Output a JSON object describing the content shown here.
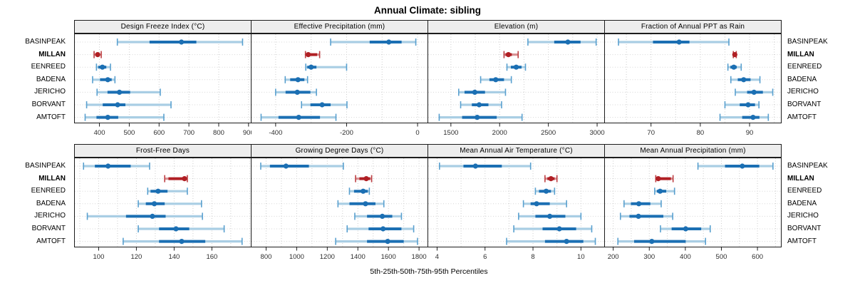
{
  "title": "Annual Climate: sibling",
  "xlabel": "5th-25th-50th-75th-95th Percentiles",
  "stations": [
    "BASINPEAK",
    "MILLAN",
    "EENREED",
    "BADENA",
    "JERICHO",
    "BORVANT",
    "AMTOFT"
  ],
  "highlight_station": "MILLAN",
  "colors": {
    "normal": "#1b6fb3",
    "normal_light": "#a9cee4",
    "normal_cap": "#59a0cf",
    "highlight": "#b01f24",
    "highlight_light": "#d89294",
    "highlight_cap": "#bc3e42",
    "grid": "#cccccc",
    "strip_bg": "#ededed",
    "panel_border": "#1c1c1c",
    "tick_text": "#2e2e2e"
  },
  "chart_data": {
    "type": "dot-whisker-percentile-trellis",
    "rows": 2,
    "cols": 4,
    "percentiles": [
      5,
      25,
      50,
      75,
      95
    ],
    "station_order": [
      "BASINPEAK",
      "MILLAN",
      "EENREED",
      "BADENA",
      "JERICHO",
      "BORVANT",
      "AMTOFT"
    ],
    "panels": [
      {
        "title": "Design Freeze Index (°C)",
        "xlim": [
          315,
          910
        ],
        "ticks": [
          400,
          500,
          600,
          700,
          800,
          900
        ],
        "grid_step": 100,
        "values": [
          [
            460,
            568,
            675,
            725,
            880
          ],
          [
            382,
            387,
            394,
            400,
            406
          ],
          [
            390,
            396,
            410,
            423,
            437
          ],
          [
            377,
            402,
            428,
            441,
            452
          ],
          [
            392,
            427,
            467,
            503,
            604
          ],
          [
            357,
            411,
            461,
            487,
            640
          ],
          [
            352,
            390,
            428,
            463,
            616
          ]
        ]
      },
      {
        "title": "Effective Precipitation (mm)",
        "xlim": [
          -470,
          30
        ],
        "ticks": [
          -400,
          -200,
          0
        ],
        "grid_step": 100,
        "values": [
          [
            -245,
            -135,
            -81,
            -45,
            -5
          ],
          [
            -316,
            -312,
            -308,
            -283,
            -276
          ],
          [
            -315,
            -311,
            -300,
            -285,
            -200
          ],
          [
            -373,
            -359,
            -337,
            -319,
            -310
          ],
          [
            -400,
            -372,
            -339,
            -302,
            -285
          ],
          [
            -327,
            -302,
            -269,
            -245,
            -199
          ],
          [
            -441,
            -392,
            -335,
            -275,
            -230
          ]
        ]
      },
      {
        "title": "Elevation (m)",
        "xlim": [
          1260,
          3080
        ],
        "ticks": [
          1500,
          2000,
          2500,
          3000
        ],
        "grid_step": 250,
        "values": [
          [
            2290,
            2560,
            2700,
            2830,
            2990
          ],
          [
            2045,
            2060,
            2090,
            2125,
            2190
          ],
          [
            2075,
            2115,
            2170,
            2225,
            2265
          ],
          [
            1805,
            1895,
            1960,
            2045,
            2120
          ],
          [
            1580,
            1640,
            1745,
            1850,
            2060
          ],
          [
            1600,
            1715,
            1790,
            1885,
            2020
          ],
          [
            1380,
            1615,
            1770,
            1970,
            2230
          ]
        ]
      },
      {
        "title": "Fraction of Annual PPT as Rain",
        "xlim": [
          60.5,
          96.5
        ],
        "ticks": [
          70,
          80,
          90
        ],
        "grid_step": 5,
        "values": [
          [
            63.4,
            70.4,
            75.7,
            77.8,
            85.8
          ],
          [
            86.7,
            86.8,
            87.0,
            87.2,
            87.3
          ],
          [
            85.6,
            86.1,
            86.8,
            87.4,
            88.3
          ],
          [
            86.2,
            87.6,
            88.8,
            90.2,
            92.1
          ],
          [
            87.1,
            89.5,
            90.9,
            92.7,
            94.7
          ],
          [
            85.0,
            88.0,
            89.7,
            91.1,
            91.9
          ],
          [
            84.0,
            88.5,
            90.7,
            92.0,
            93.8
          ]
        ]
      },
      {
        "title": "Frost-Free Days",
        "xlim": [
          87,
          181
        ],
        "ticks": [
          100,
          120,
          140,
          160
        ],
        "grid_step": 10,
        "values": [
          [
            92,
            98,
            105,
            117,
            127
          ],
          [
            135,
            137,
            145.5,
            146,
            147
          ],
          [
            126,
            127.5,
            131.5,
            136.5,
            147
          ],
          [
            121,
            125,
            129.5,
            135,
            154.5
          ],
          [
            94,
            114.5,
            128.5,
            135.5,
            155
          ],
          [
            121,
            132,
            141,
            148,
            166.5
          ],
          [
            113,
            132,
            144,
            156.5,
            176
          ]
        ]
      },
      {
        "title": "Growing Degree Days (°C)",
        "xlim": [
          700,
          1860
        ],
        "ticks": [
          800,
          1000,
          1200,
          1400,
          1600,
          1800
        ],
        "grid_step": 100,
        "values": [
          [
            765,
            825,
            930,
            1080,
            1305
          ],
          [
            1385,
            1410,
            1455,
            1480,
            1490
          ],
          [
            1345,
            1375,
            1435,
            1465,
            1475
          ],
          [
            1270,
            1345,
            1450,
            1515,
            1570
          ],
          [
            1380,
            1460,
            1560,
            1625,
            1685
          ],
          [
            1330,
            1470,
            1565,
            1685,
            1765
          ],
          [
            1255,
            1460,
            1595,
            1700,
            1790
          ]
        ]
      },
      {
        "title": "Mean Annual Air Temperature (°C)",
        "xlim": [
          3.6,
          11.0
        ],
        "ticks": [
          4,
          6,
          8,
          10
        ],
        "grid_step": 1,
        "values": [
          [
            4.1,
            5.1,
            5.6,
            6.7,
            7.9
          ],
          [
            8.5,
            8.6,
            8.75,
            8.9,
            9.0
          ],
          [
            8.1,
            8.25,
            8.55,
            8.75,
            8.9
          ],
          [
            7.6,
            7.9,
            8.15,
            8.7,
            9.4
          ],
          [
            7.4,
            8.1,
            8.7,
            9.35,
            10.0
          ],
          [
            7.2,
            8.4,
            9.1,
            9.8,
            10.45
          ],
          [
            6.9,
            8.5,
            9.4,
            10.1,
            10.6
          ]
        ]
      },
      {
        "title": "Mean Annual Precipitation (mm)",
        "xlim": [
          175,
          667
        ],
        "ticks": [
          200,
          300,
          400,
          500,
          600
        ],
        "grid_step": 50,
        "values": [
          [
            435,
            510,
            558,
            605,
            643
          ],
          [
            318,
            322,
            325,
            360,
            366
          ],
          [
            315,
            321,
            330,
            347,
            370
          ],
          [
            230,
            249,
            271,
            303,
            333
          ],
          [
            220,
            245,
            270,
            339,
            365
          ],
          [
            331,
            362,
            401,
            444,
            469
          ],
          [
            213,
            258,
            307,
            401,
            456
          ]
        ]
      }
    ]
  }
}
